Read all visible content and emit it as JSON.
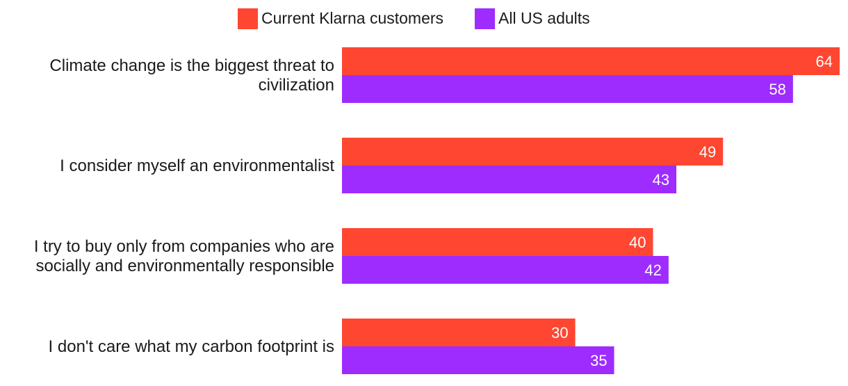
{
  "chart_data": {
    "type": "bar",
    "orientation": "horizontal",
    "title": "",
    "xlabel": "",
    "ylabel": "",
    "xlim": [
      0,
      64
    ],
    "grid": false,
    "legend_position": "top-center",
    "categories": [
      [
        "Climate change is the biggest threat to",
        "civilization"
      ],
      [
        "I consider myself an environmentalist"
      ],
      [
        "I try to buy only from companies who are",
        "socially and environmentally responsible"
      ],
      [
        "I don't care what my carbon footprint is"
      ]
    ],
    "series": [
      {
        "name": "Current Klarna customers",
        "color": "#ff4630",
        "values": [
          64,
          49,
          40,
          30
        ],
        "labels": [
          "64",
          "49",
          "40",
          "30"
        ]
      },
      {
        "name": "All US adults",
        "color": "#9e2cff",
        "values": [
          58,
          43,
          42,
          35
        ],
        "labels": [
          "58",
          "43",
          "42",
          "35"
        ]
      }
    ]
  }
}
